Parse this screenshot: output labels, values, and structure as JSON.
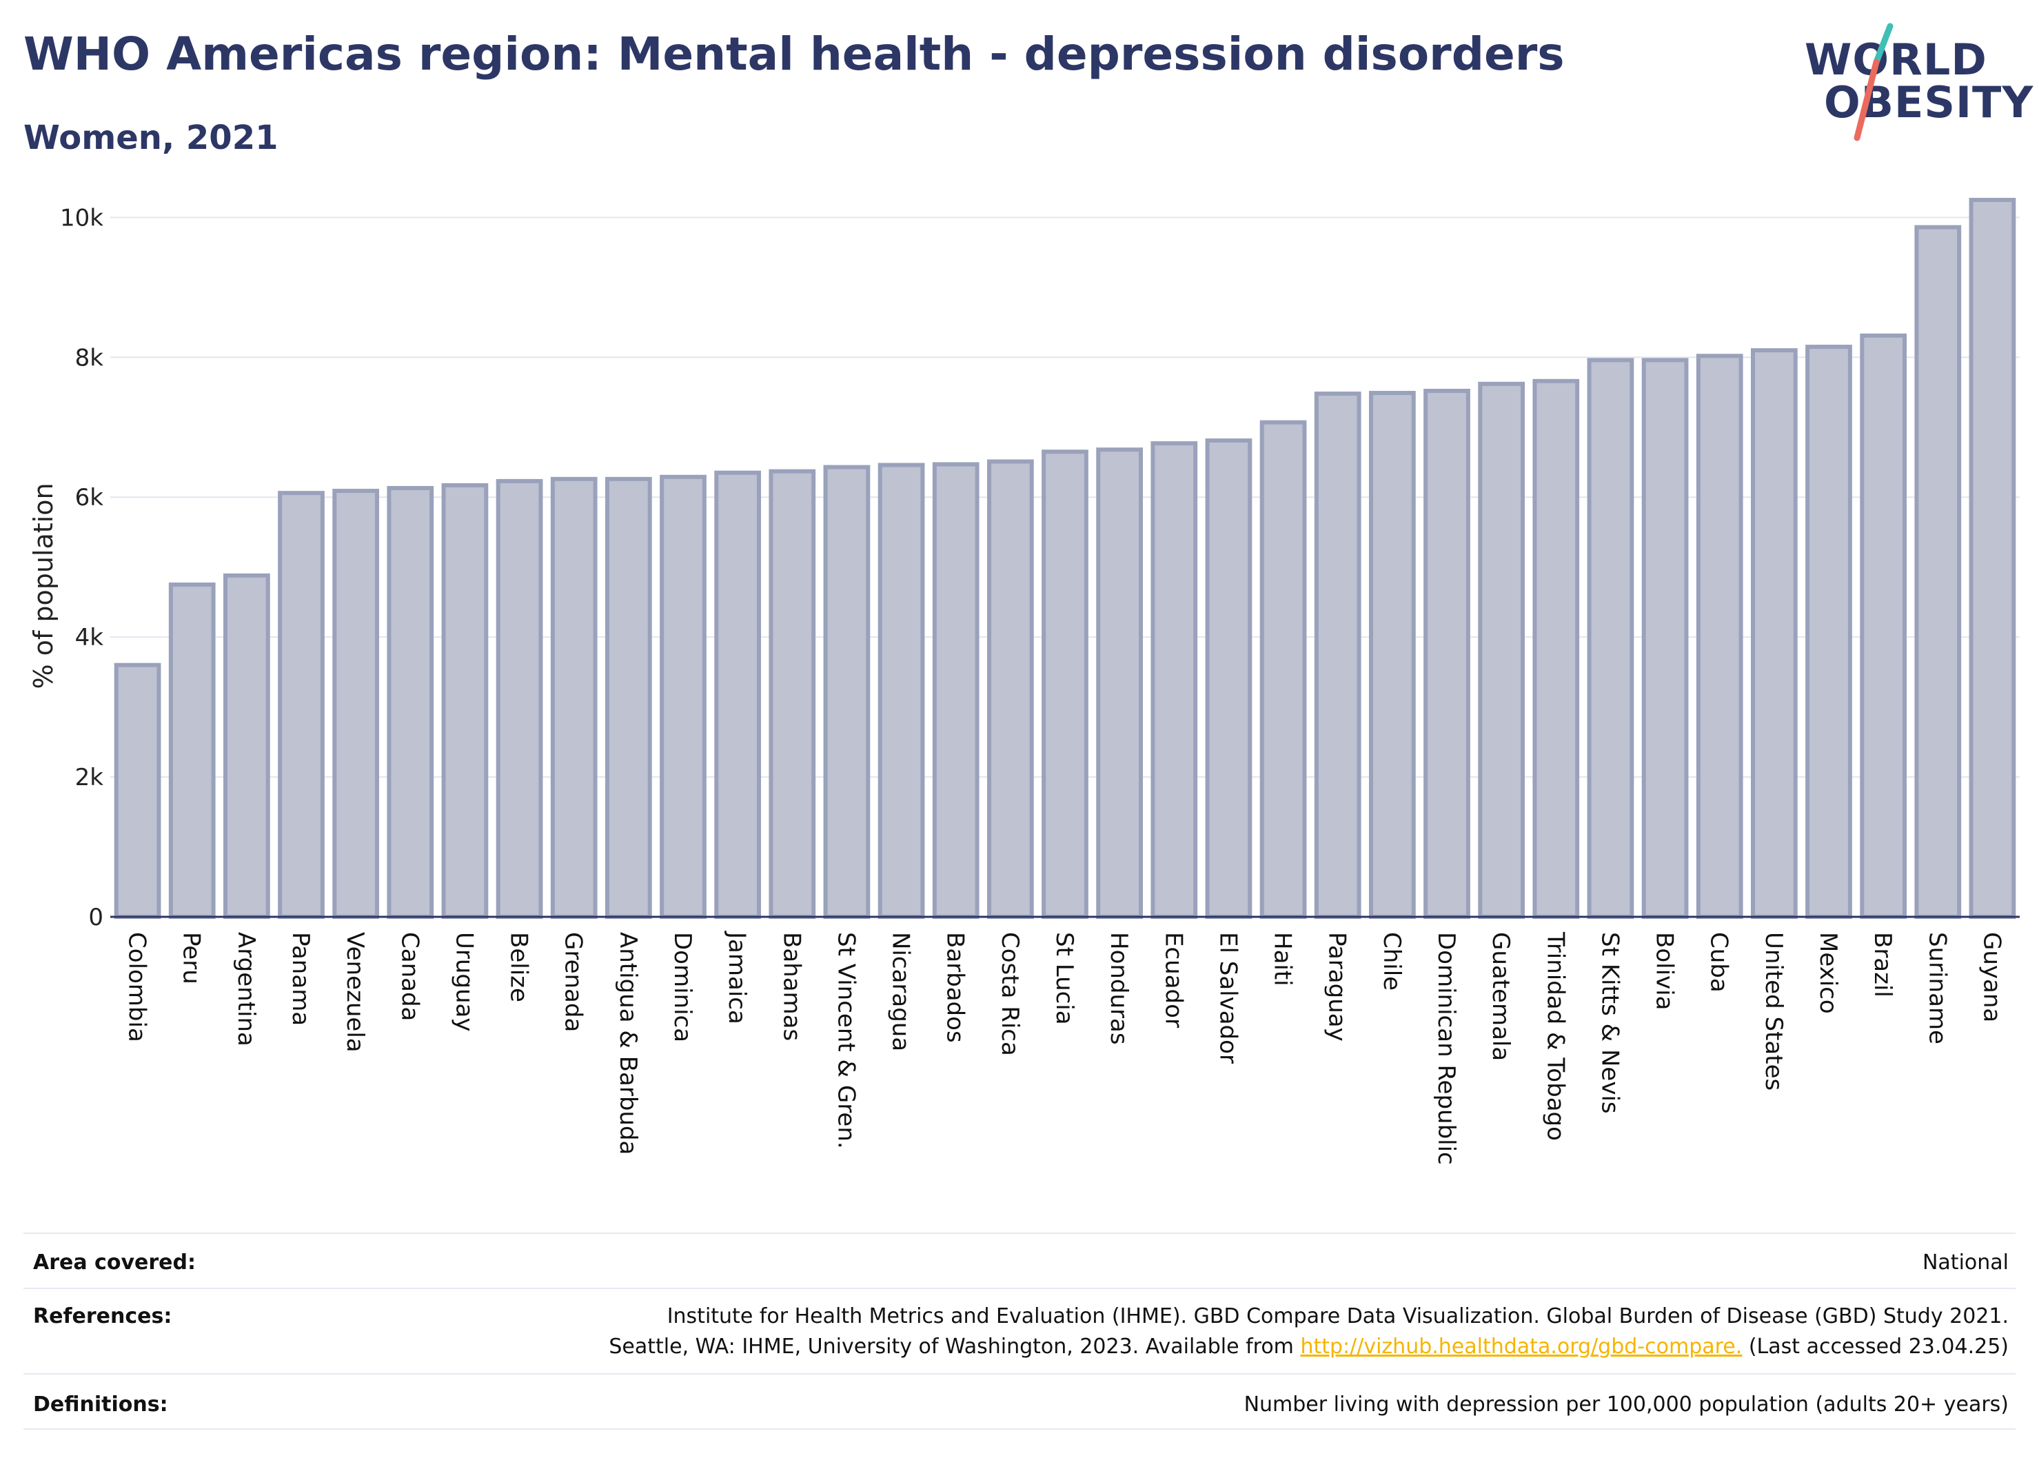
{
  "header": {
    "title": "WHO Americas region: Mental health - depression disorders",
    "subtitle": "Women, 2021"
  },
  "logo": {
    "line1": "WORLD",
    "line2": "OBESITY",
    "colors": {
      "text": "#2d3766",
      "slash_teal": "#3fbfb6",
      "slash_coral": "#ea6b5d"
    }
  },
  "chart_data": {
    "type": "bar",
    "ylabel": "% of population",
    "xlabel": "",
    "ylim": [
      0,
      10250
    ],
    "yticks": [
      0,
      2000,
      4000,
      6000,
      8000,
      10000
    ],
    "ytick_labels": [
      "0",
      "2k",
      "4k",
      "6k",
      "8k",
      "10k"
    ],
    "grid": true,
    "bar_color": "#bec2d1",
    "bar_border_color": "#9aa1bb",
    "categories": [
      "Colombia",
      "Peru",
      "Argentina",
      "Panama",
      "Venezuela",
      "Canada",
      "Uruguay",
      "Belize",
      "Grenada",
      "Antigua & Barbuda",
      "Dominica",
      "Jamaica",
      "Bahamas",
      "St Vincent & Gren.",
      "Nicaragua",
      "Barbados",
      "Costa Rica",
      "St Lucia",
      "Honduras",
      "Ecuador",
      "El Salvador",
      "Haiti",
      "Paraguay",
      "Chile",
      "Dominican Republic",
      "Guatemala",
      "Trinidad & Tobago",
      "St Kitts & Nevis",
      "Bolivia",
      "Cuba",
      "United States",
      "Mexico",
      "Brazil",
      "Suriname",
      "Guyana"
    ],
    "values": [
      3600,
      4750,
      4880,
      6060,
      6090,
      6130,
      6170,
      6230,
      6260,
      6260,
      6290,
      6350,
      6370,
      6430,
      6460,
      6470,
      6510,
      6650,
      6680,
      6770,
      6810,
      7070,
      7480,
      7490,
      7520,
      7620,
      7660,
      7960,
      7960,
      8020,
      8100,
      8150,
      8310,
      9860,
      10250
    ]
  },
  "table": {
    "area_label": "Area covered:",
    "area_value": "National",
    "ref_label": "References:",
    "ref_line1": "Institute for Health Metrics and Evaluation (IHME). GBD Compare Data Visualization. Global Burden of Disease (GBD) Study 2021.",
    "ref_line2_pre": "Seattle, WA: IHME, University of Washington, 2023. Available from ",
    "ref_link": "http://vizhub.healthdata.org/gbd-compare.",
    "ref_line2_post": " (Last accessed 23.04.25)",
    "def_label": "Definitions:",
    "def_value": "Number living with depression per 100,000 population (adults 20+ years)"
  }
}
